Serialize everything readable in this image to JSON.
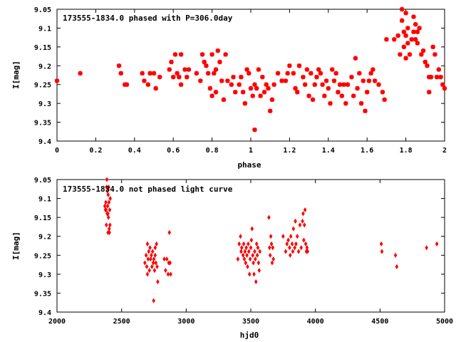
{
  "chart_data": [
    {
      "type": "scatter",
      "title": "173555-1834.0 phased with P=306.0day",
      "xlabel": "phase",
      "ylabel": "I[mag]",
      "xlim": [
        0,
        2
      ],
      "ylim": [
        9.05,
        9.4
      ],
      "y_inverted": true,
      "xticks": [
        0,
        0.2,
        0.4,
        0.6,
        0.8,
        1,
        1.2,
        1.4,
        1.6,
        1.8,
        2
      ],
      "xtick_labels": [
        "0",
        "0.2",
        "0.4",
        "0.6",
        "0.8",
        "1",
        "1.2",
        "1.4",
        "1.6",
        "1.8",
        "2"
      ],
      "yticks": [
        9.05,
        9.1,
        9.15,
        9.2,
        9.25,
        9.3,
        9.35,
        9.4
      ],
      "ytick_labels": [
        "9.05",
        "9.1",
        "9.15",
        "9.2",
        "9.25",
        "9.3",
        "9.35",
        "9.4"
      ],
      "grid": false,
      "marker_color": "#ff0000",
      "points": [
        [
          0.0,
          9.24
        ],
        [
          0.12,
          9.22
        ],
        [
          0.32,
          9.2
        ],
        [
          0.33,
          9.22
        ],
        [
          0.35,
          9.25
        ],
        [
          0.36,
          9.25
        ],
        [
          0.44,
          9.22
        ],
        [
          0.45,
          9.24
        ],
        [
          0.47,
          9.25
        ],
        [
          0.48,
          9.22
        ],
        [
          0.5,
          9.22
        ],
        [
          0.51,
          9.26
        ],
        [
          0.53,
          9.23
        ],
        [
          0.58,
          9.21
        ],
        [
          0.59,
          9.19
        ],
        [
          0.6,
          9.23
        ],
        [
          0.61,
          9.17
        ],
        [
          0.62,
          9.22
        ],
        [
          0.63,
          9.23
        ],
        [
          0.64,
          9.17
        ],
        [
          0.64,
          9.25
        ],
        [
          0.66,
          9.21
        ],
        [
          0.67,
          9.23
        ],
        [
          0.68,
          9.21
        ],
        [
          0.72,
          9.22
        ],
        [
          0.74,
          9.24
        ],
        [
          0.75,
          9.17
        ],
        [
          0.76,
          9.19
        ],
        [
          0.77,
          9.2
        ],
        [
          0.78,
          9.22
        ],
        [
          0.79,
          9.26
        ],
        [
          0.8,
          9.17
        ],
        [
          0.8,
          9.28
        ],
        [
          0.81,
          9.22
        ],
        [
          0.82,
          9.21
        ],
        [
          0.82,
          9.27
        ],
        [
          0.83,
          9.16
        ],
        [
          0.84,
          9.19
        ],
        [
          0.85,
          9.24
        ],
        [
          0.86,
          9.29
        ],
        [
          0.87,
          9.17
        ],
        [
          0.88,
          9.24
        ],
        [
          0.9,
          9.25
        ],
        [
          0.91,
          9.23
        ],
        [
          0.92,
          9.27
        ],
        [
          0.94,
          9.25
        ],
        [
          0.95,
          9.23
        ],
        [
          0.96,
          9.27
        ],
        [
          0.97,
          9.3
        ],
        [
          0.98,
          9.21
        ],
        [
          0.99,
          9.22
        ],
        [
          1.0,
          9.26
        ],
        [
          1.01,
          9.28
        ],
        [
          1.02,
          9.37
        ],
        [
          1.02,
          9.25
        ],
        [
          1.03,
          9.26
        ],
        [
          1.04,
          9.21
        ],
        [
          1.05,
          9.28
        ],
        [
          1.06,
          9.23
        ],
        [
          1.07,
          9.27
        ],
        [
          1.08,
          9.25
        ],
        [
          1.09,
          9.26
        ],
        [
          1.1,
          9.32
        ],
        [
          1.11,
          9.29
        ],
        [
          1.12,
          9.25
        ],
        [
          1.14,
          9.22
        ],
        [
          1.16,
          9.24
        ],
        [
          1.18,
          9.24
        ],
        [
          1.19,
          9.22
        ],
        [
          1.2,
          9.2
        ],
        [
          1.22,
          9.22
        ],
        [
          1.23,
          9.26
        ],
        [
          1.24,
          9.27
        ],
        [
          1.25,
          9.2
        ],
        [
          1.27,
          9.23
        ],
        [
          1.28,
          9.25
        ],
        [
          1.29,
          9.21
        ],
        [
          1.3,
          9.28
        ],
        [
          1.31,
          9.22
        ],
        [
          1.32,
          9.29
        ],
        [
          1.33,
          9.25
        ],
        [
          1.34,
          9.23
        ],
        [
          1.35,
          9.21
        ],
        [
          1.36,
          9.22
        ],
        [
          1.37,
          9.25
        ],
        [
          1.38,
          9.28
        ],
        [
          1.39,
          9.24
        ],
        [
          1.4,
          9.26
        ],
        [
          1.41,
          9.3
        ],
        [
          1.42,
          9.21
        ],
        [
          1.43,
          9.24
        ],
        [
          1.44,
          9.22
        ],
        [
          1.45,
          9.27
        ],
        [
          1.46,
          9.25
        ],
        [
          1.47,
          9.28
        ],
        [
          1.48,
          9.25
        ],
        [
          1.49,
          9.3
        ],
        [
          1.5,
          9.25
        ],
        [
          1.52,
          9.23
        ],
        [
          1.53,
          9.28
        ],
        [
          1.54,
          9.18
        ],
        [
          1.55,
          9.26
        ],
        [
          1.56,
          9.22
        ],
        [
          1.57,
          9.3
        ],
        [
          1.58,
          9.24
        ],
        [
          1.59,
          9.32
        ],
        [
          1.6,
          9.27
        ],
        [
          1.61,
          9.24
        ],
        [
          1.62,
          9.22
        ],
        [
          1.63,
          9.21
        ],
        [
          1.64,
          9.24
        ],
        [
          1.66,
          9.25
        ],
        [
          1.68,
          9.27
        ],
        [
          1.69,
          9.29
        ],
        [
          1.7,
          9.13
        ],
        [
          1.74,
          9.13
        ],
        [
          1.76,
          9.12
        ],
        [
          1.77,
          9.17
        ],
        [
          1.78,
          9.05
        ],
        [
          1.78,
          9.08
        ],
        [
          1.79,
          9.11
        ],
        [
          1.79,
          9.15
        ],
        [
          1.8,
          9.06
        ],
        [
          1.8,
          9.12
        ],
        [
          1.8,
          9.18
        ],
        [
          1.81,
          9.1
        ],
        [
          1.81,
          9.14
        ],
        [
          1.82,
          9.17
        ],
        [
          1.83,
          9.13
        ],
        [
          1.84,
          9.07
        ],
        [
          1.84,
          9.11
        ],
        [
          1.85,
          9.09
        ],
        [
          1.85,
          9.13
        ],
        [
          1.86,
          9.11
        ],
        [
          1.86,
          9.14
        ],
        [
          1.87,
          9.1
        ],
        [
          1.88,
          9.17
        ],
        [
          1.89,
          9.16
        ],
        [
          1.9,
          9.19
        ],
        [
          1.91,
          9.2
        ],
        [
          1.92,
          9.23
        ],
        [
          1.92,
          9.27
        ],
        [
          1.93,
          9.23
        ],
        [
          1.94,
          9.15
        ],
        [
          1.95,
          9.17
        ],
        [
          1.96,
          9.23
        ],
        [
          1.97,
          9.21
        ],
        [
          1.98,
          9.23
        ],
        [
          1.99,
          9.25
        ],
        [
          2.0,
          9.26
        ]
      ]
    },
    {
      "type": "scatter",
      "title": "173555-1834.0 not phased light curve",
      "xlabel": "hjd0",
      "ylabel": "I[mag]",
      "xlim": [
        2000,
        5000
      ],
      "ylim": [
        9.05,
        9.4
      ],
      "y_inverted": true,
      "xticks": [
        2000,
        2500,
        3000,
        3500,
        4000,
        4500,
        5000
      ],
      "xtick_labels": [
        "2000",
        "2500",
        "3000",
        "3500",
        "4000",
        "4500",
        "5000"
      ],
      "yticks": [
        9.05,
        9.1,
        9.15,
        9.2,
        9.25,
        9.3,
        9.35,
        9.4
      ],
      "ytick_labels": [
        "9.05",
        "9.1",
        "9.15",
        "9.2",
        "9.25",
        "9.3",
        "9.35",
        "9.4"
      ],
      "grid": false,
      "marker_color": "#ff0000",
      "points": [
        [
          2370,
          9.12
        ],
        [
          2375,
          9.13
        ],
        [
          2378,
          9.11
        ],
        [
          2380,
          9.13
        ],
        [
          2382,
          9.17
        ],
        [
          2384,
          9.07
        ],
        [
          2386,
          9.05
        ],
        [
          2388,
          9.14
        ],
        [
          2390,
          9.08
        ],
        [
          2392,
          9.12
        ],
        [
          2394,
          9.14
        ],
        [
          2396,
          9.09
        ],
        [
          2398,
          9.15
        ],
        [
          2400,
          9.07
        ],
        [
          2402,
          9.11
        ],
        [
          2404,
          9.18
        ],
        [
          2406,
          9.19
        ],
        [
          2408,
          9.13
        ],
        [
          2410,
          9.17
        ],
        [
          2412,
          9.1
        ],
        [
          2395,
          9.19
        ],
        [
          2680,
          9.27
        ],
        [
          2690,
          9.25
        ],
        [
          2695,
          9.28
        ],
        [
          2700,
          9.22
        ],
        [
          2705,
          9.26
        ],
        [
          2710,
          9.24
        ],
        [
          2715,
          9.29
        ],
        [
          2720,
          9.23
        ],
        [
          2725,
          9.26
        ],
        [
          2730,
          9.25
        ],
        [
          2735,
          9.28
        ],
        [
          2740,
          9.24
        ],
        [
          2745,
          9.27
        ],
        [
          2748,
          9.37
        ],
        [
          2750,
          9.26
        ],
        [
          2755,
          9.29
        ],
        [
          2760,
          9.25
        ],
        [
          2765,
          9.27
        ],
        [
          2770,
          9.22
        ],
        [
          2775,
          9.28
        ],
        [
          2780,
          9.32
        ],
        [
          2700,
          9.3
        ],
        [
          2760,
          9.23
        ],
        [
          2830,
          9.26
        ],
        [
          2840,
          9.29
        ],
        [
          2850,
          9.26
        ],
        [
          2860,
          9.3
        ],
        [
          2865,
          9.27
        ],
        [
          2870,
          9.19
        ],
        [
          2875,
          9.27
        ],
        [
          2880,
          9.3
        ],
        [
          3400,
          9.26
        ],
        [
          3410,
          9.22
        ],
        [
          3420,
          9.2
        ],
        [
          3425,
          9.24
        ],
        [
          3430,
          9.23
        ],
        [
          3440,
          9.25
        ],
        [
          3445,
          9.22
        ],
        [
          3450,
          9.26
        ],
        [
          3455,
          9.24
        ],
        [
          3460,
          9.27
        ],
        [
          3465,
          9.23
        ],
        [
          3470,
          9.25
        ],
        [
          3475,
          9.28
        ],
        [
          3480,
          9.22
        ],
        [
          3485,
          9.24
        ],
        [
          3490,
          9.3
        ],
        [
          3495,
          9.26
        ],
        [
          3500,
          9.23
        ],
        [
          3505,
          9.21
        ],
        [
          3510,
          9.18
        ],
        [
          3515,
          9.25
        ],
        [
          3520,
          9.27
        ],
        [
          3525,
          9.3
        ],
        [
          3530,
          9.24
        ],
        [
          3535,
          9.26
        ],
        [
          3540,
          9.32
        ],
        [
          3545,
          9.22
        ],
        [
          3550,
          9.25
        ],
        [
          3555,
          9.23
        ],
        [
          3560,
          9.27
        ],
        [
          3565,
          9.29
        ],
        [
          3570,
          9.24
        ],
        [
          3640,
          9.15
        ],
        [
          3645,
          9.23
        ],
        [
          3650,
          9.25
        ],
        [
          3655,
          9.2
        ],
        [
          3660,
          9.22
        ],
        [
          3665,
          9.27
        ],
        [
          3670,
          9.23
        ],
        [
          3675,
          9.26
        ],
        [
          3750,
          9.2
        ],
        [
          3770,
          9.24
        ],
        [
          3780,
          9.22
        ],
        [
          3790,
          9.21
        ],
        [
          3800,
          9.23
        ],
        [
          3805,
          9.25
        ],
        [
          3810,
          9.2
        ],
        [
          3820,
          9.22
        ],
        [
          3825,
          9.24
        ],
        [
          3830,
          9.18
        ],
        [
          3840,
          9.23
        ],
        [
          3845,
          9.16
        ],
        [
          3850,
          9.22
        ],
        [
          3860,
          9.2
        ],
        [
          3870,
          9.24
        ],
        [
          3880,
          9.17
        ],
        [
          3890,
          9.23
        ],
        [
          3900,
          9.16
        ],
        [
          3905,
          9.14
        ],
        [
          3910,
          9.21
        ],
        [
          3915,
          9.17
        ],
        [
          3920,
          9.13
        ],
        [
          3925,
          9.22
        ],
        [
          3930,
          9.24
        ],
        [
          3935,
          9.23
        ],
        [
          3940,
          9.24
        ],
        [
          4510,
          9.22
        ],
        [
          4515,
          9.24
        ],
        [
          4620,
          9.25
        ],
        [
          4630,
          9.28
        ],
        [
          4860,
          9.23
        ],
        [
          4940,
          9.22
        ]
      ]
    }
  ]
}
